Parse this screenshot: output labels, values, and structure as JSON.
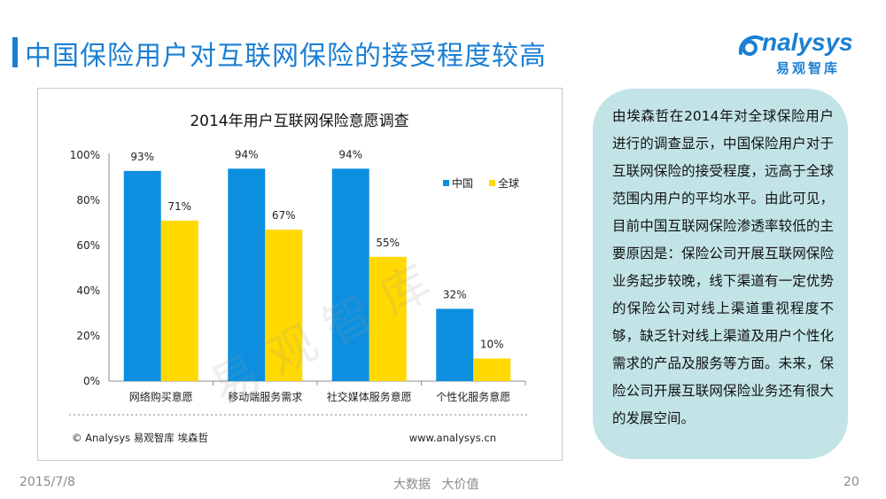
{
  "page": {
    "title": "中国保险用户对互联网保险的接受程度较高",
    "footer_date": "2015/7/8",
    "footer_center": "大数据 大价值",
    "page_number": "20"
  },
  "logo": {
    "wordmark": "nalysys",
    "cn": "易观智库"
  },
  "watermark": "易观智库",
  "callout": {
    "text": "由埃森哲在2014年对全球保险用户进行的调查显示，中国保险用户对于互联网保险的接受程度，远高于全球范围内用户的平均水平。由此可见，目前中国互联网保险渗透率较低的主要原因是：保险公司开展互联网保险业务起步较晚，线下渠道有一定优势的保险公司对线上渠道重视程度不够，缺乏针对线上渠道及用户个性化需求的产品及服务等方面。未来，保险公司开展互联网保险业务还有很大的发展空间。"
  },
  "chart_data": {
    "type": "bar",
    "title": "2014年用户互联网保险意愿调查",
    "categories": [
      "网络购买意愿",
      "移动端服务需求",
      "社交媒体服务意愿",
      "个性化服务意愿"
    ],
    "series": [
      {
        "name": "中国",
        "values": [
          93,
          94,
          94,
          32
        ],
        "labels": [
          "93%",
          "94%",
          "94%",
          "32%"
        ],
        "color": "#0d8fe0"
      },
      {
        "name": "全球",
        "values": [
          71,
          67,
          55,
          10
        ],
        "labels": [
          "71%",
          "67%",
          "55%",
          "10%"
        ],
        "color": "#ffd900"
      }
    ],
    "y_ticks": [
      "0%",
      "20%",
      "40%",
      "60%",
      "80%",
      "100%"
    ],
    "ylim": [
      0,
      100
    ],
    "legend_position": "right",
    "source_left": "© Analysys 易观智库 埃森哲",
    "source_right": "www.analysys.cn"
  }
}
